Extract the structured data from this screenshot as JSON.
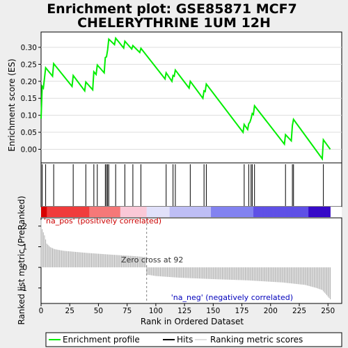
{
  "title_line1": "Enrichment plot: GSE85871 MCF7",
  "title_line2": "CHELERYTHRINE 1UM 12H",
  "colors": {
    "es_line": "#00ee00",
    "hits": "#000000",
    "metric": "#b0b0b0",
    "pos_text": "#cc0000",
    "neg_text": "#0000bb",
    "zero_line": "#808080"
  },
  "chart_data": [
    {
      "type": "line",
      "name": "Enrichment profile",
      "ylabel": "Enrichment score (ES)",
      "ylim": [
        -0.04,
        0.345
      ],
      "xlim": [
        0,
        262
      ],
      "yticks": [
        "0.00",
        "0.05",
        "0.10",
        "0.15",
        "0.20",
        "0.25",
        "0.30"
      ],
      "ytick_values": [
        0.0,
        0.05,
        0.1,
        0.15,
        0.2,
        0.25,
        0.3
      ],
      "points": [
        [
          0,
          0.09
        ],
        [
          1,
          0.185
        ],
        [
          2,
          0.18
        ],
        [
          4,
          0.24
        ],
        [
          10,
          0.215
        ],
        [
          11,
          0.252
        ],
        [
          27,
          0.185
        ],
        [
          28,
          0.217
        ],
        [
          38,
          0.172
        ],
        [
          39,
          0.198
        ],
        [
          45,
          0.175
        ],
        [
          46,
          0.228
        ],
        [
          48,
          0.22
        ],
        [
          49,
          0.248
        ],
        [
          55,
          0.225
        ],
        [
          56,
          0.27
        ],
        [
          57,
          0.272
        ],
        [
          58,
          0.292
        ],
        [
          59,
          0.324
        ],
        [
          64,
          0.308
        ],
        [
          65,
          0.327
        ],
        [
          72,
          0.298
        ],
        [
          73,
          0.318
        ],
        [
          79,
          0.295
        ],
        [
          80,
          0.305
        ],
        [
          86,
          0.285
        ],
        [
          87,
          0.297
        ],
        [
          108,
          0.207
        ],
        [
          109,
          0.225
        ],
        [
          114,
          0.2
        ],
        [
          115,
          0.217
        ],
        [
          116,
          0.215
        ],
        [
          117,
          0.233
        ],
        [
          129,
          0.18
        ],
        [
          130,
          0.2
        ],
        [
          141,
          0.15
        ],
        [
          142,
          0.172
        ],
        [
          143,
          0.17
        ],
        [
          144,
          0.192
        ],
        [
          176,
          0.05
        ],
        [
          177,
          0.073
        ],
        [
          180,
          0.058
        ],
        [
          181,
          0.075
        ],
        [
          182,
          0.08
        ],
        [
          183,
          0.09
        ],
        [
          184,
          0.105
        ],
        [
          185,
          0.102
        ],
        [
          186,
          0.128
        ],
        [
          212,
          0.015
        ],
        [
          213,
          0.043
        ],
        [
          218,
          0.025
        ],
        [
          219,
          0.07
        ],
        [
          220,
          0.088
        ],
        [
          245,
          -0.028
        ],
        [
          246,
          0.028
        ],
        [
          252,
          0.0
        ]
      ]
    },
    {
      "type": "hits",
      "name": "Hits",
      "x": [
        1,
        4,
        11,
        28,
        39,
        46,
        49,
        56,
        57,
        58,
        59,
        65,
        73,
        80,
        87,
        109,
        115,
        117,
        130,
        142,
        144,
        177,
        181,
        183,
        184,
        186,
        213,
        219,
        220,
        246
      ]
    },
    {
      "type": "area",
      "name": "Ranking metric scores",
      "ylabel": "Ranked list metric (PreRanked)",
      "xlabel": "Rank in Ordered Dataset",
      "ylim": [
        -1.75,
        2.4
      ],
      "xlim": [
        0,
        262
      ],
      "xticks": [
        "0",
        "25",
        "50",
        "75",
        "100",
        "125",
        "150",
        "175",
        "200",
        "225",
        "250"
      ],
      "xtick_values": [
        0,
        25,
        50,
        75,
        100,
        125,
        150,
        175,
        200,
        225,
        250
      ],
      "yticks": [
        "-1",
        "0",
        "1",
        "2"
      ],
      "ytick_values": [
        -1,
        0,
        1,
        2
      ],
      "profile": [
        [
          0,
          2.3
        ],
        [
          1,
          1.85
        ],
        [
          3,
          1.55
        ],
        [
          5,
          1.15
        ],
        [
          8,
          0.98
        ],
        [
          12,
          0.88
        ],
        [
          20,
          0.8
        ],
        [
          40,
          0.7
        ],
        [
          60,
          0.62
        ],
        [
          80,
          0.55
        ],
        [
          91,
          0.5
        ],
        [
          92,
          -0.35
        ],
        [
          100,
          -0.42
        ],
        [
          120,
          -0.5
        ],
        [
          150,
          -0.57
        ],
        [
          180,
          -0.63
        ],
        [
          210,
          -0.73
        ],
        [
          230,
          -0.85
        ],
        [
          240,
          -1.0
        ],
        [
          245,
          -1.1
        ],
        [
          249,
          -1.35
        ],
        [
          252,
          -1.55
        ]
      ],
      "zero_cross": 92,
      "zero_cross_label": "Zero cross at 92",
      "pos_label": "'na_pos' (positively correlated)",
      "neg_label": "'na_neg' (negatively correlated)"
    }
  ],
  "legend": [
    {
      "label": "Enrichment profile",
      "kind": "es"
    },
    {
      "label": "Hits",
      "kind": "hit"
    },
    {
      "label": "Ranking metric scores",
      "kind": "metric"
    }
  ]
}
